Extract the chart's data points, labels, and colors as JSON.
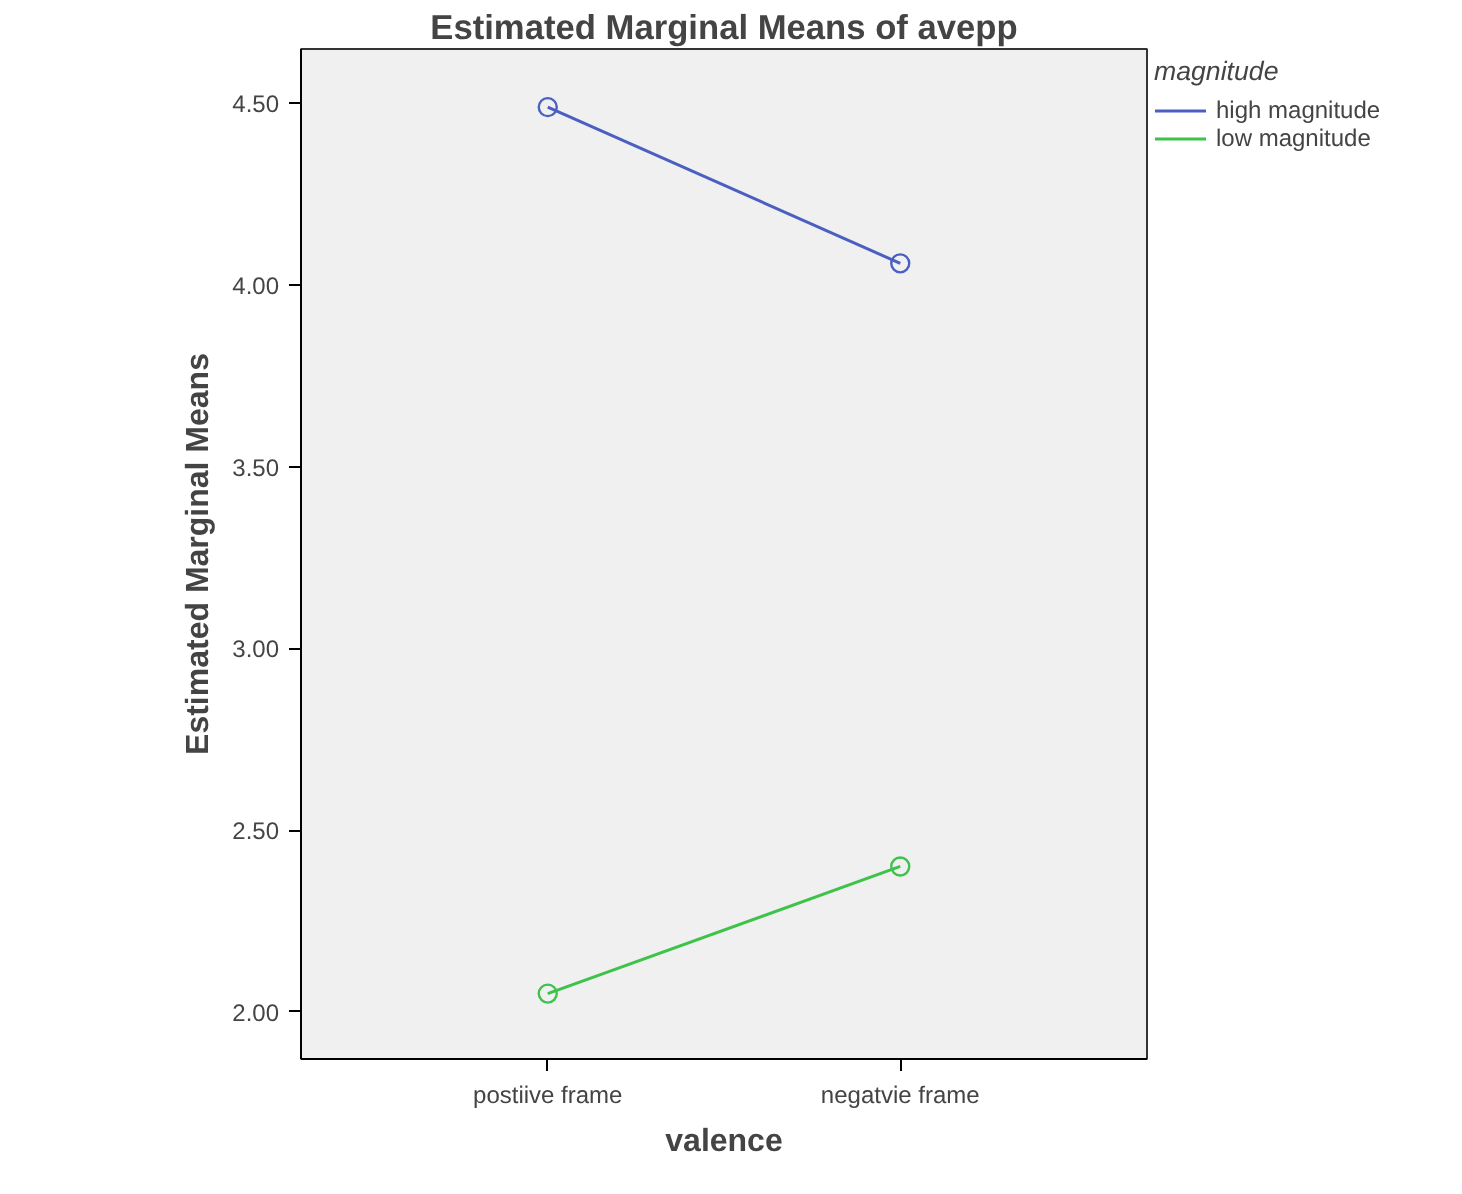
{
  "chart_data": {
    "type": "line",
    "title": "Estimated Marginal Means of avepp",
    "xlabel": "valence",
    "ylabel": "Estimated Marginal Means",
    "legend_title": "magnitude",
    "categories": [
      "postiive frame",
      "negatvie frame"
    ],
    "series": [
      {
        "name": "high magnitude",
        "color": "#4a5fc1",
        "values": [
          4.49,
          4.06
        ]
      },
      {
        "name": "low magnitude",
        "color": "#3dc24a",
        "values": [
          2.05,
          2.4
        ]
      }
    ],
    "ylim": [
      1.87,
      4.65
    ],
    "yticks": [
      {
        "value": 2.0,
        "label": "2.00"
      },
      {
        "value": 2.5,
        "label": "2.50"
      },
      {
        "value": 3.0,
        "label": "3.00"
      },
      {
        "value": 3.5,
        "label": "3.50"
      },
      {
        "value": 4.0,
        "label": "4.00"
      },
      {
        "value": 4.5,
        "label": "4.50"
      }
    ],
    "marker": "circle",
    "grid": false,
    "legend": "right"
  }
}
